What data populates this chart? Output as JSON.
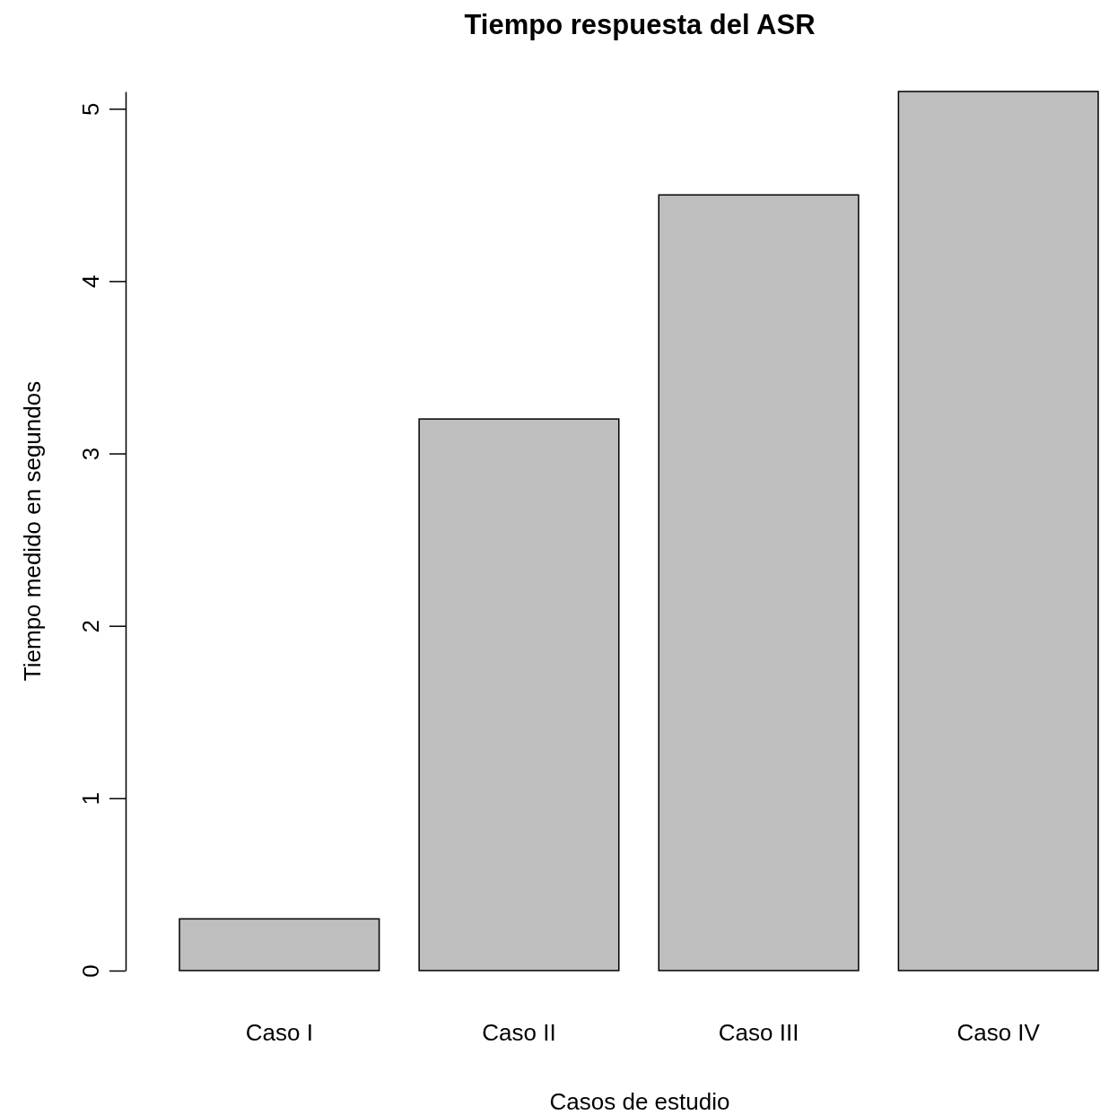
{
  "chart_data": {
    "type": "bar",
    "title": "Tiempo respuesta del ASR",
    "xlabel": "Casos de estudio",
    "ylabel": "Tiempo medido en segundos",
    "categories": [
      "Caso I",
      "Caso II",
      "Caso III",
      "Caso IV"
    ],
    "values": [
      0.3,
      3.2,
      4.5,
      5.1
    ],
    "color": "#bebebe",
    "ylim": [
      0,
      5.1
    ],
    "yticks": [
      0,
      1,
      2,
      3,
      4,
      5
    ]
  }
}
